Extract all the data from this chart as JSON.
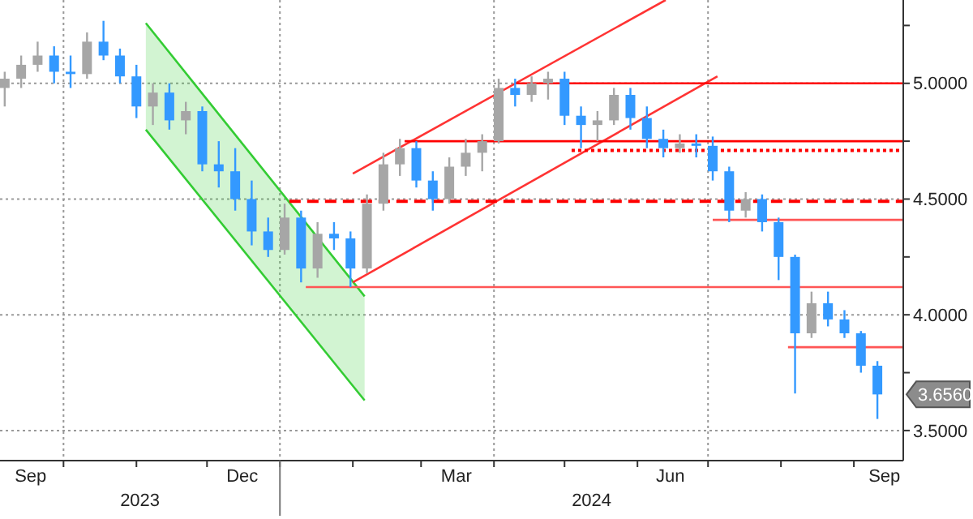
{
  "chart_data": {
    "type": "candlestick",
    "x": [
      "2023-09-06",
      "2023-09-13",
      "2023-09-20",
      "2023-09-27",
      "2023-10-04",
      "2023-10-11",
      "2023-10-18",
      "2023-10-25",
      "2023-11-01",
      "2023-11-08",
      "2023-11-15",
      "2023-11-22",
      "2023-11-29",
      "2023-12-06",
      "2023-12-13",
      "2023-12-20",
      "2023-12-27",
      "2024-01-03",
      "2024-01-10",
      "2024-01-17",
      "2024-01-24",
      "2024-01-31",
      "2024-02-07",
      "2024-02-14",
      "2024-02-21",
      "2024-02-28",
      "2024-03-06",
      "2024-03-13",
      "2024-03-20",
      "2024-03-27",
      "2024-04-03",
      "2024-04-10",
      "2024-04-17",
      "2024-04-24",
      "2024-05-01",
      "2024-05-08",
      "2024-05-15",
      "2024-05-22",
      "2024-05-29",
      "2024-06-05",
      "2024-06-12",
      "2024-06-19",
      "2024-06-26",
      "2024-07-03",
      "2024-07-10",
      "2024-07-17",
      "2024-07-24",
      "2024-07-31",
      "2024-08-07",
      "2024-08-14",
      "2024-08-21",
      "2024-08-28",
      "2024-09-04",
      "2024-09-11"
    ],
    "ohlc": [
      [
        4.98,
        5.05,
        4.9,
        5.02
      ],
      [
        5.02,
        5.12,
        4.98,
        5.08
      ],
      [
        5.08,
        5.18,
        5.05,
        5.12
      ],
      [
        5.12,
        5.16,
        5.0,
        5.05
      ],
      [
        5.05,
        5.12,
        4.98,
        5.04
      ],
      [
        5.04,
        5.22,
        5.02,
        5.18
      ],
      [
        5.18,
        5.27,
        5.1,
        5.12
      ],
      [
        5.12,
        5.15,
        5.0,
        5.03
      ],
      [
        5.03,
        5.08,
        4.85,
        4.9
      ],
      [
        4.9,
        5.0,
        4.82,
        4.96
      ],
      [
        4.96,
        5.0,
        4.8,
        4.84
      ],
      [
        4.84,
        4.92,
        4.78,
        4.88
      ],
      [
        4.88,
        4.9,
        4.62,
        4.65
      ],
      [
        4.65,
        4.75,
        4.55,
        4.62
      ],
      [
        4.62,
        4.72,
        4.45,
        4.5
      ],
      [
        4.5,
        4.58,
        4.3,
        4.36
      ],
      [
        4.36,
        4.42,
        4.25,
        4.28
      ],
      [
        4.28,
        4.48,
        4.26,
        4.42
      ],
      [
        4.42,
        4.45,
        4.14,
        4.2
      ],
      [
        4.2,
        4.4,
        4.16,
        4.35
      ],
      [
        4.35,
        4.4,
        4.28,
        4.33
      ],
      [
        4.33,
        4.36,
        4.12,
        4.2
      ],
      [
        4.2,
        4.52,
        4.18,
        4.48
      ],
      [
        4.48,
        4.7,
        4.45,
        4.65
      ],
      [
        4.65,
        4.76,
        4.6,
        4.72
      ],
      [
        4.72,
        4.75,
        4.55,
        4.58
      ],
      [
        4.58,
        4.62,
        4.45,
        4.5
      ],
      [
        4.5,
        4.68,
        4.48,
        4.64
      ],
      [
        4.64,
        4.76,
        4.6,
        4.7
      ],
      [
        4.7,
        4.78,
        4.62,
        4.75
      ],
      [
        4.75,
        5.02,
        4.74,
        4.98
      ],
      [
        4.98,
        5.02,
        4.9,
        4.95
      ],
      [
        4.95,
        5.03,
        4.92,
        5.0
      ],
      [
        5.0,
        5.05,
        4.93,
        5.02
      ],
      [
        5.02,
        5.05,
        4.82,
        4.86
      ],
      [
        4.86,
        4.9,
        4.72,
        4.82
      ],
      [
        4.82,
        4.88,
        4.75,
        4.84
      ],
      [
        4.84,
        4.98,
        4.82,
        4.95
      ],
      [
        4.95,
        4.98,
        4.8,
        4.85
      ],
      [
        4.85,
        4.9,
        4.72,
        4.76
      ],
      [
        4.76,
        4.8,
        4.68,
        4.72
      ],
      [
        4.72,
        4.78,
        4.7,
        4.74
      ],
      [
        4.74,
        4.78,
        4.68,
        4.73
      ],
      [
        4.73,
        4.77,
        4.58,
        4.62
      ],
      [
        4.62,
        4.64,
        4.4,
        4.45
      ],
      [
        4.45,
        4.53,
        4.42,
        4.5
      ],
      [
        4.5,
        4.52,
        4.36,
        4.4
      ],
      [
        4.4,
        4.42,
        4.15,
        4.25
      ],
      [
        4.25,
        4.26,
        3.66,
        3.92
      ],
      [
        3.92,
        4.1,
        3.9,
        4.05
      ],
      [
        4.05,
        4.1,
        3.95,
        3.98
      ],
      [
        3.98,
        4.02,
        3.9,
        3.92
      ],
      [
        3.92,
        3.93,
        3.75,
        3.78
      ],
      [
        3.78,
        3.8,
        3.55,
        3.656
      ]
    ],
    "colors": [
      "#a6a6a6",
      "#a6a6a6",
      "#a6a6a6",
      "#3399ff",
      "#3399ff",
      "#a6a6a6",
      "#3399ff",
      "#3399ff",
      "#3399ff",
      "#a6a6a6",
      "#3399ff",
      "#a6a6a6",
      "#3399ff",
      "#3399ff",
      "#3399ff",
      "#3399ff",
      "#3399ff",
      "#a6a6a6",
      "#3399ff",
      "#a6a6a6",
      "#3399ff",
      "#3399ff",
      "#a6a6a6",
      "#a6a6a6",
      "#a6a6a6",
      "#3399ff",
      "#3399ff",
      "#a6a6a6",
      "#a6a6a6",
      "#a6a6a6",
      "#a6a6a6",
      "#3399ff",
      "#a6a6a6",
      "#a6a6a6",
      "#3399ff",
      "#3399ff",
      "#a6a6a6",
      "#a6a6a6",
      "#3399ff",
      "#3399ff",
      "#3399ff",
      "#a6a6a6",
      "#3399ff",
      "#3399ff",
      "#3399ff",
      "#a6a6a6",
      "#3399ff",
      "#3399ff",
      "#3399ff",
      "#a6a6a6",
      "#3399ff",
      "#3399ff",
      "#3399ff",
      "#3399ff"
    ],
    "series": [
      {
        "type": "line",
        "x": [
          "2023-11-05",
          "2024-02-06"
        ],
        "values": [
          5.26,
          4.08
        ],
        "color": "#33cc33",
        "line_style": "solid"
      },
      {
        "type": "line",
        "x": [
          "2023-11-05",
          "2024-02-06"
        ],
        "values": [
          4.8,
          3.63
        ],
        "color": "#33cc33",
        "line_style": "solid"
      },
      {
        "type": "line",
        "x": [
          "2024-02-01",
          "2024-06-13"
        ],
        "values": [
          4.61,
          5.36
        ],
        "color": "#ff3333",
        "line_style": "solid"
      },
      {
        "type": "line",
        "x": [
          "2024-02-01",
          "2024-07-05"
        ],
        "values": [
          4.14,
          5.03
        ],
        "color": "#ff3333",
        "line_style": "solid"
      },
      {
        "type": "line",
        "x": [
          "2024-04-10",
          "2024-09-22"
        ],
        "values": [
          5.0,
          5.0
        ],
        "color": "#ff0000",
        "line_style": "solid"
      },
      {
        "type": "line",
        "x": [
          "2024-02-23",
          "2024-09-22"
        ],
        "values": [
          4.75,
          4.75
        ],
        "color": "#ff0000",
        "line_style": "solid"
      },
      {
        "type": "line",
        "x": [
          "2024-05-04",
          "2024-09-22"
        ],
        "values": [
          4.71,
          4.71
        ],
        "color": "#ff0000",
        "line_style": "dotted"
      },
      {
        "type": "line",
        "x": [
          "2024-01-05",
          "2024-09-22"
        ],
        "values": [
          4.49,
          4.49
        ],
        "color": "#ff0000",
        "line_style": "dashed"
      },
      {
        "type": "line",
        "x": [
          "2024-07-03",
          "2024-09-22"
        ],
        "values": [
          4.41,
          4.41
        ],
        "color": "#ff5555",
        "line_style": "solid"
      },
      {
        "type": "line",
        "x": [
          "2024-01-12",
          "2024-09-22"
        ],
        "values": [
          4.12,
          4.12
        ],
        "color": "#ff5555",
        "line_style": "solid"
      },
      {
        "type": "line",
        "x": [
          "2024-08-04",
          "2024-09-22"
        ],
        "values": [
          3.86,
          3.86
        ],
        "color": "#ff5555",
        "line_style": "solid"
      }
    ],
    "xlim": [
      "2023-09-04",
      "2024-09-22"
    ],
    "xticks": [
      {
        "value": "2023-09-17",
        "label": "Sep"
      },
      {
        "value": "2023-10-01",
        "label": null
      },
      {
        "value": "2023-11-01",
        "label": null
      },
      {
        "value": "2023-12-01",
        "label": null
      },
      {
        "value": "2023-12-16",
        "label": "Dec"
      },
      {
        "value": "2024-01-01",
        "label": null
      },
      {
        "value": "2024-02-01",
        "label": null
      },
      {
        "value": "2024-03-01",
        "label": null
      },
      {
        "value": "2024-03-16",
        "label": "Mar"
      },
      {
        "value": "2024-04-01",
        "label": null
      },
      {
        "value": "2024-05-01",
        "label": null
      },
      {
        "value": "2024-06-01",
        "label": null
      },
      {
        "value": "2024-06-15",
        "label": "Jun"
      },
      {
        "value": "2024-07-01",
        "label": null
      },
      {
        "value": "2024-08-01",
        "label": null
      },
      {
        "value": "2024-09-01",
        "label": null
      },
      {
        "value": "2024-09-14",
        "label": "Sep"
      }
    ],
    "ylim": [
      3.37,
      5.36
    ],
    "yticks": [
      {
        "value": 3.5,
        "label": "3.5000"
      },
      {
        "value": 3.75,
        "label": null
      },
      {
        "value": 4.0,
        "label": "4.0000"
      },
      {
        "value": 4.25,
        "label": null
      },
      {
        "value": 4.5,
        "label": "4.5000"
      },
      {
        "value": 4.75,
        "label": null
      },
      {
        "value": 5.0,
        "label": "5.0000"
      },
      {
        "value": 5.25,
        "label": null
      }
    ],
    "grid": true,
    "annotations": [
      "2023",
      "2024"
    ],
    "value_labels": [
      null,
      null,
      null,
      null,
      null,
      null,
      null,
      null,
      null,
      null,
      null,
      null,
      null,
      null,
      null,
      null,
      null,
      null,
      null,
      null,
      null,
      null,
      null,
      null,
      null,
      null,
      null,
      null,
      null,
      null,
      null,
      null,
      null,
      null,
      null,
      null,
      null,
      null,
      null,
      null,
      null,
      null,
      null,
      null,
      null,
      null,
      null,
      null,
      null,
      null,
      null,
      null,
      null,
      "3.6560"
    ]
  }
}
